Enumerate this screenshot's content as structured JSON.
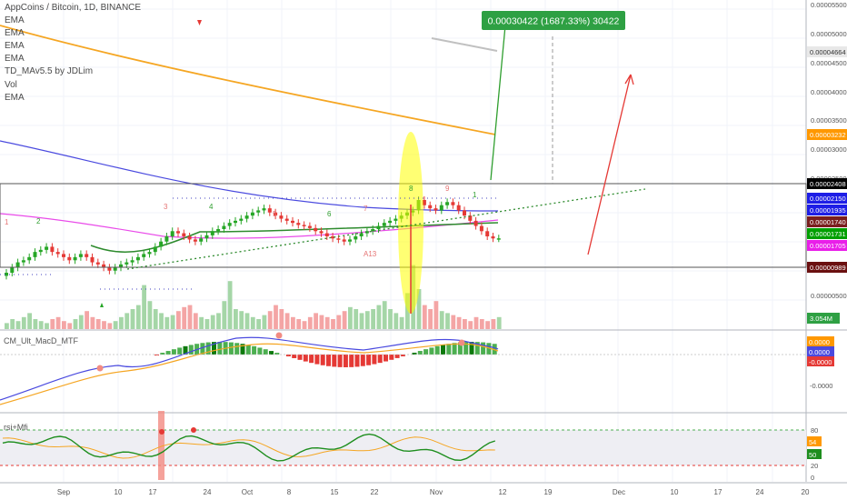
{
  "header": {
    "title": "AppCoins / Bitcoin, 1D, BINANCE",
    "indicators": [
      "EMA",
      "EMA",
      "EMA",
      "EMA",
      "TD_MAv5.5 by JDLim",
      "Vol",
      "EMA"
    ]
  },
  "measure_label": "0.00030422 (1687.33%) 30422",
  "annotations": {
    "markers": [
      "1",
      "2",
      "3",
      "4",
      "5",
      "6",
      "7",
      "8",
      "9",
      "A13"
    ],
    "volume_badge": "3.054M"
  },
  "panes": {
    "macd_label": "CM_Ult_MacD_MTF",
    "rsi_label": "rsi+Mfi"
  },
  "chart_data": {
    "type": "candlestick",
    "main": {
      "price_axis_ticks": [
        "0.00005500",
        "0.00005000",
        "0.00004500",
        "0.00004000",
        "0.00003500",
        "0.00003000",
        "0.00002500",
        "0.00000500"
      ],
      "price_tags": [
        {
          "label": "0.00004664",
          "color": "#e8e8e8",
          "text_color": "#333333"
        },
        {
          "label": "0.00003232",
          "color": "#ff9800",
          "text_color": "#ffffff"
        },
        {
          "label": "0.00002408",
          "color": "#000000",
          "text_color": "#ffffff"
        },
        {
          "label": "0.00002150",
          "color": "#1e1ee6",
          "text_color": "#ffffff"
        },
        {
          "label": "0.00001935",
          "color": "#1e1ee6",
          "text_color": "#ffffff"
        },
        {
          "label": "0.00001740",
          "color": "#7a1e1e",
          "text_color": "#ffffff"
        },
        {
          "label": "0.00001731",
          "color": "#00a000",
          "text_color": "#ffffff"
        },
        {
          "label": "0.00001705",
          "color": "#e91ee9",
          "text_color": "#ffffff"
        },
        {
          "label": "0.00000989",
          "color": "#6b1010",
          "text_color": "#ffffff"
        }
      ],
      "candles_approx_close": [
        14,
        14.5,
        15,
        15.2,
        15.5,
        16,
        16.2,
        16.5,
        16,
        15.8,
        15.5,
        15.2,
        15.5,
        15.8,
        15.5,
        15,
        14.8,
        14.5,
        14.2,
        14.5,
        14.8,
        15,
        15.2,
        15.5,
        15.8,
        16,
        16.5,
        17,
        17.5,
        18,
        17.8,
        17.5,
        17.2,
        17,
        17.3,
        17.6,
        18,
        18.2,
        18.5,
        18.8,
        19,
        19.2,
        19.5,
        19.8,
        20,
        20.2,
        19.8,
        19.5,
        19.2,
        19,
        18.8,
        18.6,
        18.5,
        18.3,
        18,
        17.8,
        17.5,
        17.3,
        17.2,
        17,
        17.2,
        17.5,
        17.8,
        18,
        18.2,
        18.5,
        18.8,
        19,
        19.2,
        19.5,
        19.8,
        20,
        21,
        20.5,
        20.2,
        20,
        20.5,
        20.8,
        20.5,
        20,
        19.5,
        19,
        18.5,
        18,
        17.5,
        17.3,
        17.31
      ]
    },
    "macd": {
      "tags": [
        "0.0000",
        "0.0000",
        "-0.0000"
      ],
      "axis_ticks": [
        "-0.0000"
      ]
    },
    "rsi": {
      "axis_ticks": [
        "80",
        "20",
        "0"
      ],
      "tags": [
        "54",
        "50"
      ],
      "overbought": 80,
      "oversold": 20
    },
    "x_axis_labels": [
      "Sep",
      "10",
      "17",
      "24",
      "Oct",
      "8",
      "15",
      "22",
      "Nov",
      "12",
      "19",
      "Dec",
      "10",
      "17",
      "24",
      "20"
    ]
  }
}
